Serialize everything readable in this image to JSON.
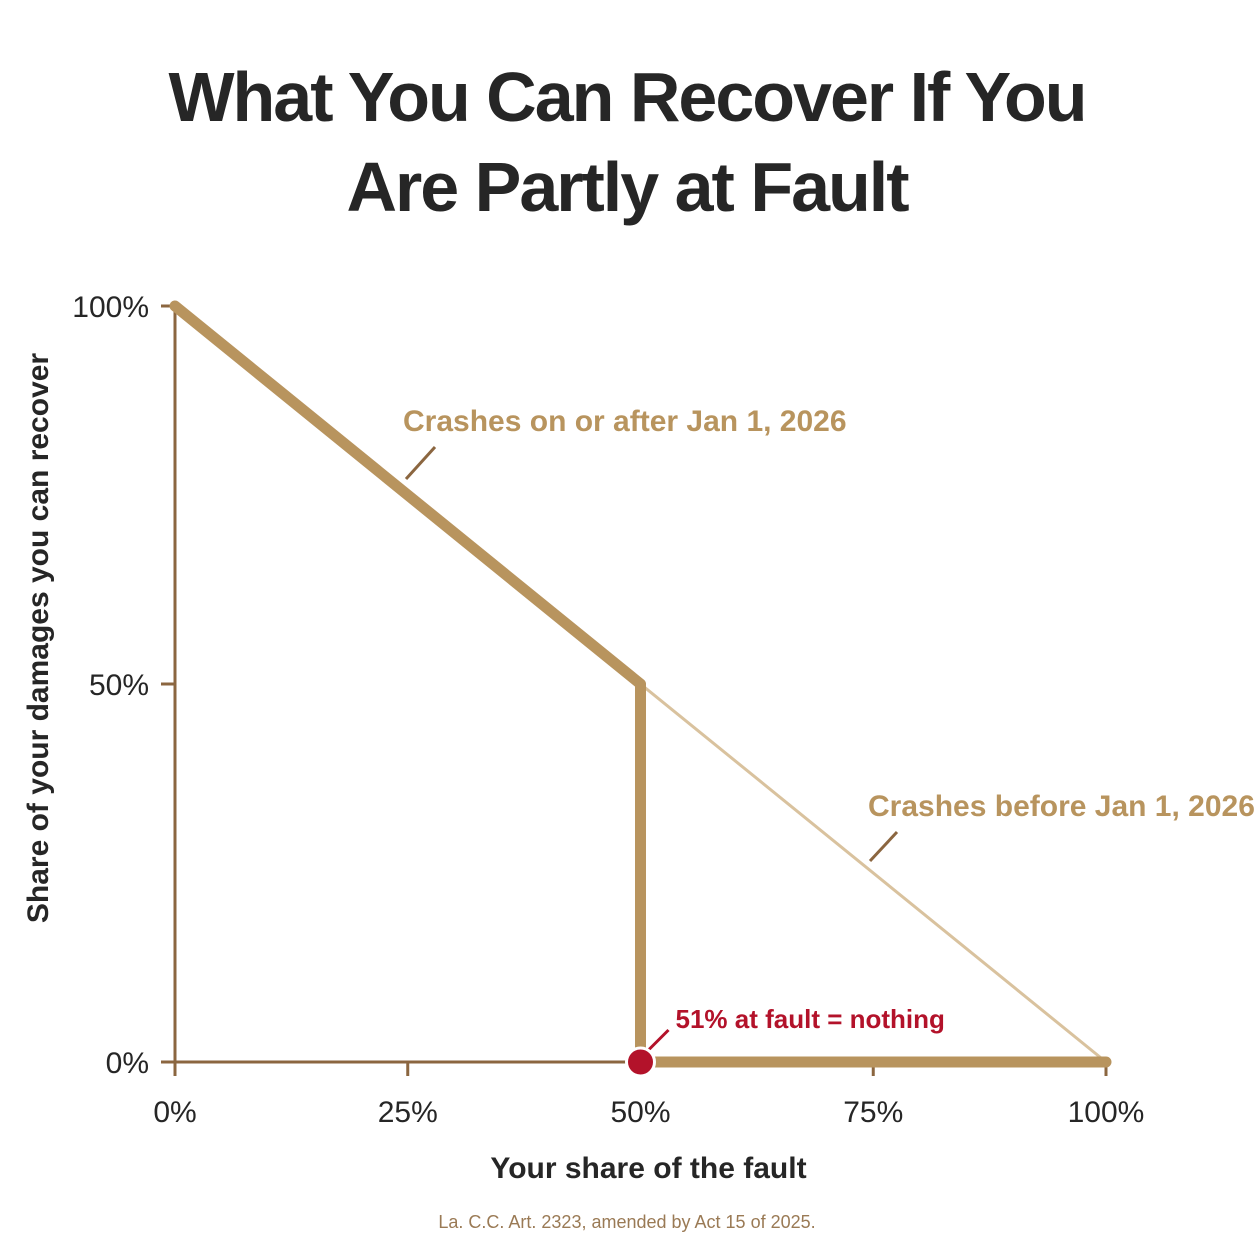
{
  "title": [
    "What You Can Recover If You",
    "Are Partly at Fault"
  ],
  "source_note": "La. C.C. Art. 2323, amended by Act 15 of 2025.",
  "colors": {
    "gold": "#b8945e",
    "gold_light": "#d9c29e",
    "axis": "#8b6640",
    "red": "#b3122a",
    "text": "#262626"
  },
  "chart_data": {
    "type": "line",
    "xlabel": "Your share of the fault",
    "ylabel": "Share of your damages you can recover",
    "xlim": [
      0,
      100
    ],
    "ylim": [
      0,
      100
    ],
    "x_ticks": [
      "0%",
      "25%",
      "50%",
      "75%",
      "100%"
    ],
    "x_tick_values": [
      0,
      25,
      50,
      75,
      100
    ],
    "y_ticks": [
      "100%",
      "50%",
      "0%"
    ],
    "y_tick_values": [
      100,
      50,
      0
    ],
    "grid": false,
    "series": [
      {
        "name": "Crashes on or after Jan 1, 2026",
        "x": [
          0,
          50,
          50,
          100
        ],
        "y": [
          100,
          50,
          0,
          0
        ],
        "style": "thick"
      },
      {
        "name": "Crashes before Jan 1, 2026",
        "x": [
          0,
          100
        ],
        "y": [
          100,
          0
        ],
        "style": "thin"
      }
    ],
    "annotations": [
      {
        "text": "51% at fault = nothing",
        "x": 50,
        "y": 0,
        "marker": "dot"
      }
    ]
  }
}
